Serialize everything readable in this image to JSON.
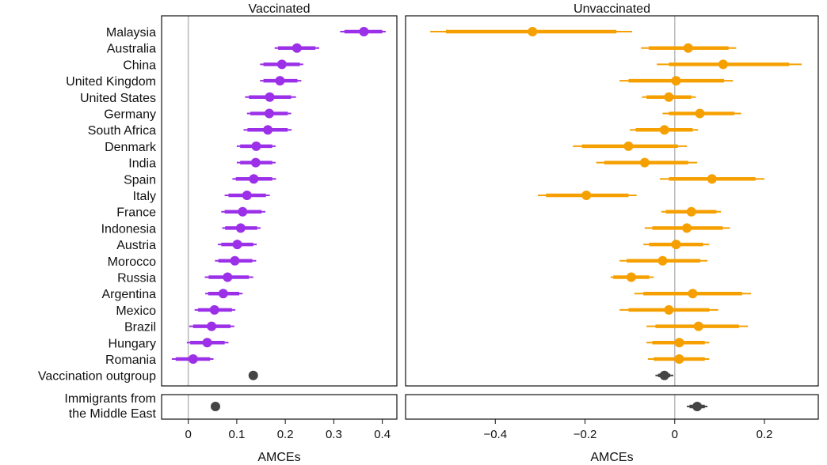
{
  "chart_data": {
    "type": "forest",
    "xlabel": "AMCEs",
    "categories": [
      "Malaysia",
      "Australia",
      "China",
      "United Kingdom",
      "United States",
      "Germany",
      "South Africa",
      "Denmark",
      "India",
      "Spain",
      "Italy",
      "France",
      "Indonesia",
      "Austria",
      "Morocco",
      "Russia",
      "Argentina",
      "Mexico",
      "Brazil",
      "Hungary",
      "Romania",
      "Vaccination outgroup"
    ],
    "extra_category": "Immigrants from the Middle East",
    "extra_category_lines": [
      "Immigrants from",
      "the Middle East"
    ],
    "colors": {
      "vaccinated": "#9B30E8",
      "unvaccinated": "#F5A000",
      "reference": "#444444"
    },
    "panels": [
      {
        "name": "Vaccinated",
        "xlim": [
          -0.055,
          0.43
        ],
        "ticks": [
          0,
          0.1,
          0.2,
          0.3,
          0.4
        ],
        "tick_labels": [
          "0",
          "0.1",
          "0.2",
          "0.3",
          "0.4"
        ],
        "points": [
          {
            "est": 0.362,
            "ci95": [
              0.313,
              0.407
            ],
            "ci90": [
              0.322,
              0.4
            ]
          },
          {
            "est": 0.224,
            "ci95": [
              0.178,
              0.27
            ],
            "ci90": [
              0.185,
              0.262
            ]
          },
          {
            "est": 0.193,
            "ci95": [
              0.148,
              0.237
            ],
            "ci90": [
              0.155,
              0.23
            ]
          },
          {
            "est": 0.189,
            "ci95": [
              0.148,
              0.233
            ],
            "ci90": [
              0.155,
              0.225
            ]
          },
          {
            "est": 0.168,
            "ci95": [
              0.117,
              0.222
            ],
            "ci90": [
              0.125,
              0.212
            ]
          },
          {
            "est": 0.167,
            "ci95": [
              0.121,
              0.212
            ],
            "ci90": [
              0.128,
              0.205
            ]
          },
          {
            "est": 0.164,
            "ci95": [
              0.114,
              0.213
            ],
            "ci90": [
              0.122,
              0.205
            ]
          },
          {
            "est": 0.14,
            "ci95": [
              0.1,
              0.18
            ],
            "ci90": [
              0.107,
              0.173
            ]
          },
          {
            "est": 0.139,
            "ci95": [
              0.1,
              0.18
            ],
            "ci90": [
              0.107,
              0.173
            ]
          },
          {
            "est": 0.135,
            "ci95": [
              0.091,
              0.181
            ],
            "ci90": [
              0.098,
              0.173
            ]
          },
          {
            "est": 0.121,
            "ci95": [
              0.075,
              0.168
            ],
            "ci90": [
              0.083,
              0.16
            ]
          },
          {
            "est": 0.112,
            "ci95": [
              0.068,
              0.159
            ],
            "ci90": [
              0.075,
              0.151
            ]
          },
          {
            "est": 0.108,
            "ci95": [
              0.07,
              0.149
            ],
            "ci90": [
              0.076,
              0.142
            ]
          },
          {
            "est": 0.101,
            "ci95": [
              0.061,
              0.141
            ],
            "ci90": [
              0.068,
              0.134
            ]
          },
          {
            "est": 0.096,
            "ci95": [
              0.055,
              0.14
            ],
            "ci90": [
              0.062,
              0.132
            ]
          },
          {
            "est": 0.081,
            "ci95": [
              0.034,
              0.134
            ],
            "ci90": [
              0.042,
              0.125
            ]
          },
          {
            "est": 0.072,
            "ci95": [
              0.035,
              0.112
            ],
            "ci90": [
              0.041,
              0.105
            ]
          },
          {
            "est": 0.054,
            "ci95": [
              0.013,
              0.097
            ],
            "ci90": [
              0.02,
              0.09
            ]
          },
          {
            "est": 0.048,
            "ci95": [
              0.002,
              0.095
            ],
            "ci90": [
              0.01,
              0.087
            ]
          },
          {
            "est": 0.039,
            "ci95": [
              -0.003,
              0.083
            ],
            "ci90": [
              0.004,
              0.075
            ]
          },
          {
            "est": 0.01,
            "ci95": [
              -0.034,
              0.052
            ],
            "ci90": [
              -0.026,
              0.045
            ]
          },
          {
            "est": 0.134,
            "ci95": [
              0.127,
              0.141
            ],
            "ci90": [
              0.129,
              0.139
            ],
            "ref": true
          }
        ],
        "extra_point": {
          "est": 0.056,
          "ci95": [
            0.049,
            0.063
          ],
          "ci90": [
            0.051,
            0.061
          ]
        }
      },
      {
        "name": "Unvaccinated",
        "xlim": [
          -0.6,
          0.32
        ],
        "ticks": [
          -0.4,
          -0.2,
          0,
          0.2
        ],
        "tick_labels": [
          "−0.4",
          "−0.2",
          "0",
          "0.2"
        ],
        "points": [
          {
            "est": -0.317,
            "ci95": [
              -0.545,
              -0.095
            ],
            "ci90": [
              -0.51,
              -0.13
            ]
          },
          {
            "est": 0.03,
            "ci95": [
              -0.075,
              0.137
            ],
            "ci90": [
              -0.058,
              0.12
            ]
          },
          {
            "est": 0.108,
            "ci95": [
              -0.04,
              0.283
            ],
            "ci90": [
              -0.013,
              0.255
            ]
          },
          {
            "est": 0.003,
            "ci95": [
              -0.123,
              0.13
            ],
            "ci90": [
              -0.103,
              0.11
            ]
          },
          {
            "est": -0.013,
            "ci95": [
              -0.073,
              0.047
            ],
            "ci90": [
              -0.063,
              0.037
            ]
          },
          {
            "est": 0.056,
            "ci95": [
              -0.027,
              0.148
            ],
            "ci90": [
              -0.013,
              0.133
            ]
          },
          {
            "est": -0.023,
            "ci95": [
              -0.1,
              0.052
            ],
            "ci90": [
              -0.087,
              0.04
            ]
          },
          {
            "est": -0.103,
            "ci95": [
              -0.227,
              0.027
            ],
            "ci90": [
              -0.207,
              0.007
            ]
          },
          {
            "est": -0.067,
            "ci95": [
              -0.175,
              0.05
            ],
            "ci90": [
              -0.157,
              0.03
            ]
          },
          {
            "est": 0.083,
            "ci95": [
              -0.033,
              0.2
            ],
            "ci90": [
              -0.013,
              0.18
            ]
          },
          {
            "est": -0.197,
            "ci95": [
              -0.305,
              -0.085
            ],
            "ci90": [
              -0.287,
              -0.103
            ]
          },
          {
            "est": 0.037,
            "ci95": [
              -0.03,
              0.103
            ],
            "ci90": [
              -0.02,
              0.093
            ]
          },
          {
            "est": 0.027,
            "ci95": [
              -0.067,
              0.123
            ],
            "ci90": [
              -0.05,
              0.107
            ]
          },
          {
            "est": 0.003,
            "ci95": [
              -0.07,
              0.077
            ],
            "ci90": [
              -0.057,
              0.063
            ]
          },
          {
            "est": -0.027,
            "ci95": [
              -0.123,
              0.073
            ],
            "ci90": [
              -0.107,
              0.057
            ]
          },
          {
            "est": -0.097,
            "ci95": [
              -0.143,
              -0.047
            ],
            "ci90": [
              -0.137,
              -0.057
            ]
          },
          {
            "est": 0.04,
            "ci95": [
              -0.09,
              0.17
            ],
            "ci90": [
              -0.07,
              0.15
            ]
          },
          {
            "est": -0.013,
            "ci95": [
              -0.123,
              0.097
            ],
            "ci90": [
              -0.103,
              0.077
            ]
          },
          {
            "est": 0.053,
            "ci95": [
              -0.063,
              0.163
            ],
            "ci90": [
              -0.043,
              0.143
            ]
          },
          {
            "est": 0.01,
            "ci95": [
              -0.063,
              0.077
            ],
            "ci90": [
              -0.05,
              0.067
            ]
          },
          {
            "est": 0.01,
            "ci95": [
              -0.06,
              0.077
            ],
            "ci90": [
              -0.047,
              0.067
            ]
          },
          {
            "est": -0.023,
            "ci95": [
              -0.043,
              -0.003
            ],
            "ci90": [
              -0.037,
              -0.01
            ],
            "ref": true
          }
        ],
        "extra_point": {
          "est": 0.05,
          "ci95": [
            0.027,
            0.073
          ],
          "ci90": [
            0.033,
            0.067
          ]
        }
      }
    ]
  }
}
